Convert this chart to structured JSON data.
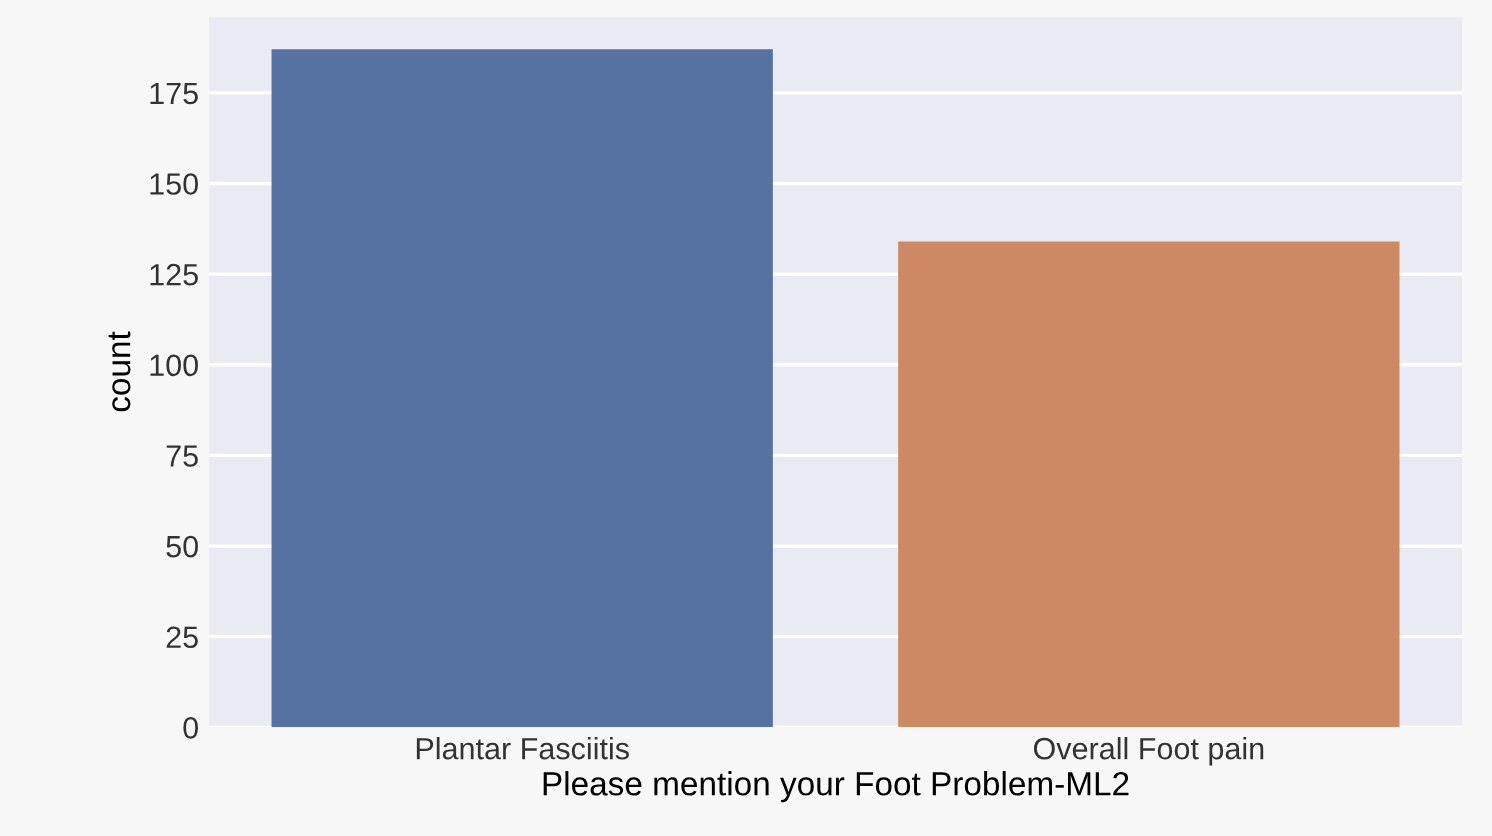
{
  "chart_data": {
    "type": "bar",
    "xlabel": "Please mention your Foot Problem-ML2",
    "ylabel": "count",
    "categories": [
      "Plantar Fasciitis",
      "Overall Foot pain"
    ],
    "values": [
      187,
      134
    ],
    "colors": [
      "#5572a2",
      "#cd8963"
    ],
    "ylim": [
      0,
      196
    ],
    "yticks": [
      0,
      25,
      50,
      75,
      100,
      125,
      150,
      175
    ],
    "grid": "y"
  }
}
